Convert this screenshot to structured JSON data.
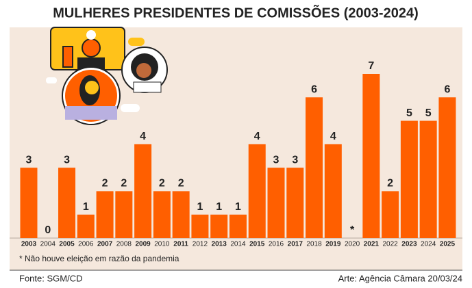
{
  "chart_data": {
    "type": "bar",
    "title": "MULHERES PRESIDENTES DE COMISSÕES (2003-2024)",
    "categories": [
      "2003",
      "2004",
      "2005",
      "2006",
      "2007",
      "2008",
      "2009",
      "2010",
      "2011",
      "2012",
      "2013",
      "2014",
      "2015",
      "2016",
      "2017",
      "2018",
      "2019",
      "2020",
      "2021",
      "2022",
      "2023",
      "2024",
      "2025"
    ],
    "values": [
      3,
      0,
      3,
      1,
      2,
      2,
      4,
      2,
      2,
      1,
      1,
      1,
      4,
      3,
      3,
      6,
      4,
      null,
      7,
      2,
      5,
      5,
      6
    ],
    "value_labels": [
      "3",
      "0",
      "3",
      "1",
      "2",
      "2",
      "4",
      "2",
      "2",
      "1",
      "1",
      "1",
      "4",
      "3",
      "3",
      "6",
      "4",
      "*",
      "7",
      "2",
      "5",
      "5",
      "6"
    ],
    "color": "#ff5f00",
    "footnote": "* Não houve eleição em razão da pandemia",
    "source": "Fonte: SGM/CD",
    "credit": "Arte: Agência Câmara 20/03/24"
  }
}
